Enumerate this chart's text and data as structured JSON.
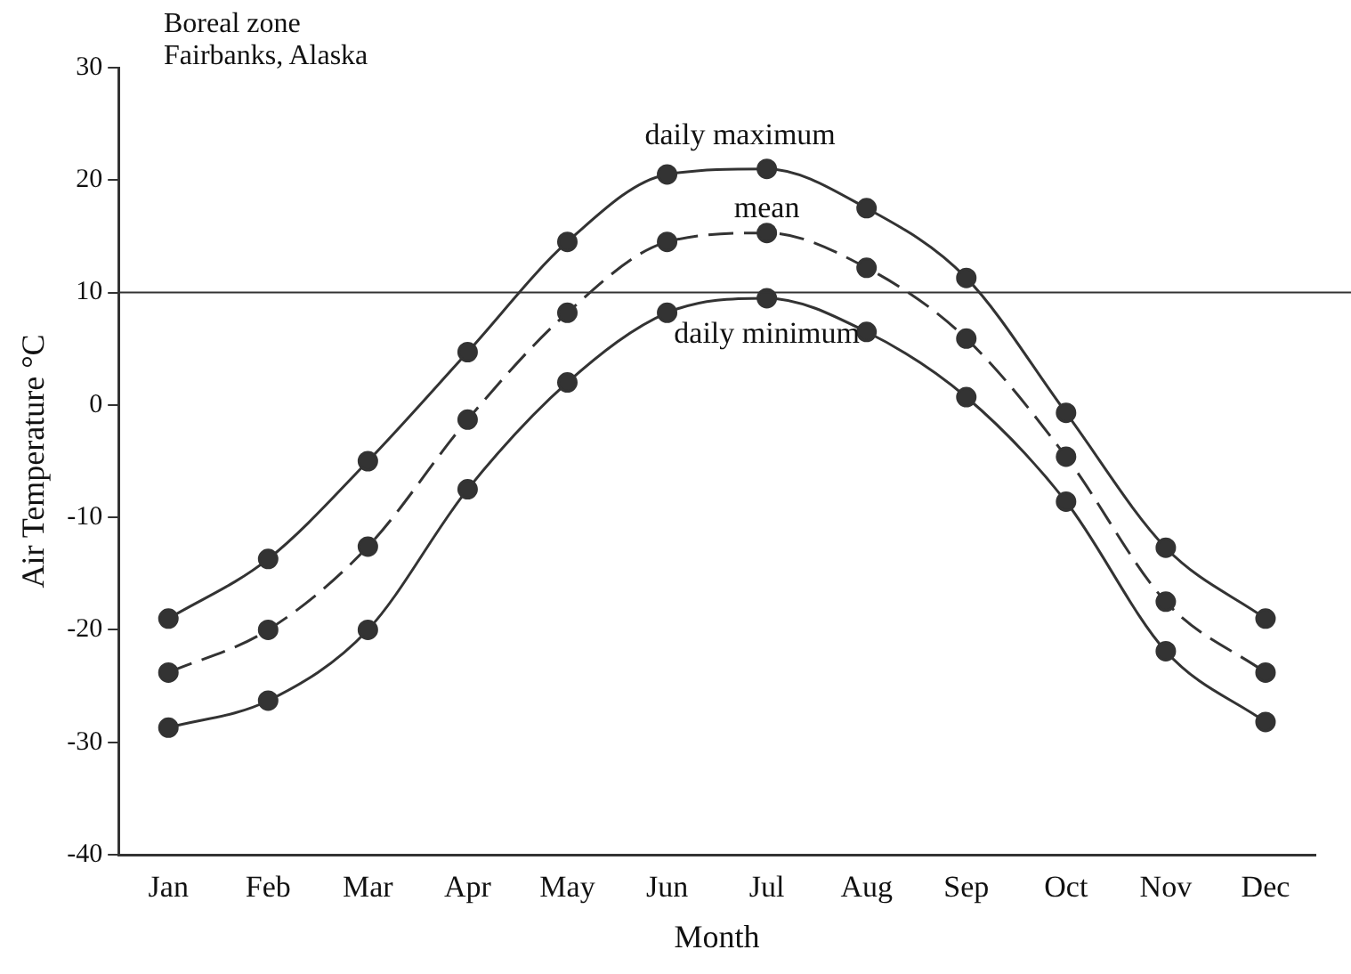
{
  "chart_data": {
    "type": "line",
    "title": "Boreal zone",
    "subtitle": "Fairbanks, Alaska",
    "xlabel": "Month",
    "ylabel": "Air Temperature °C",
    "categories": [
      "Jan",
      "Feb",
      "Mar",
      "Apr",
      "May",
      "Jun",
      "Jul",
      "Aug",
      "Sep",
      "Oct",
      "Nov",
      "Dec"
    ],
    "series": [
      {
        "name": "daily maximum",
        "color": "#333333",
        "line_style": "solid",
        "values": [
          -19,
          -13.7,
          -5,
          4.7,
          14.5,
          20.5,
          21,
          17.5,
          11.3,
          -0.7,
          -12.7,
          -19
        ]
      },
      {
        "name": "mean",
        "color": "#333333",
        "line_style": "dashed",
        "values": [
          -23.8,
          -20,
          -12.6,
          -1.3,
          8.2,
          14.5,
          15.3,
          12.2,
          5.9,
          -4.6,
          -17.5,
          -23.8
        ]
      },
      {
        "name": "daily minimum",
        "color": "#333333",
        "line_style": "solid",
        "values": [
          -28.7,
          -26.3,
          -20,
          -7.5,
          2,
          8.2,
          9.5,
          6.5,
          0.7,
          -8.6,
          -21.9,
          -28.2
        ]
      }
    ],
    "ylim": [
      -40,
      30
    ],
    "yticks": [
      -40,
      -30,
      -20,
      -10,
      0,
      10,
      20,
      30
    ],
    "grid": false,
    "legend": false,
    "marker": "circle",
    "ref_lines": [
      {
        "axis": "y",
        "value": 10,
        "color": "#333333"
      }
    ]
  }
}
